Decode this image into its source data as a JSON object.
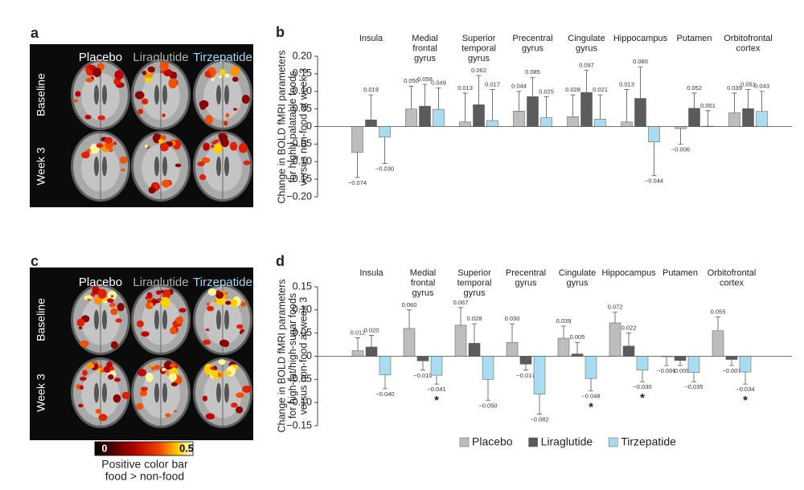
{
  "panel_labels": [
    "a",
    "b",
    "c",
    "d"
  ],
  "brain_panels": [
    {
      "columns": [
        "Placebo",
        "Liraglutide",
        "Tirzepatide"
      ],
      "rows": [
        "Baseline",
        "Week 3"
      ]
    },
    {
      "columns": [
        "Placebo",
        "Liraglutide",
        "Tirzepatide"
      ],
      "rows": [
        "Baseline",
        "Week 3"
      ]
    }
  ],
  "colorbar": {
    "ticks": [
      0,
      0.5
    ],
    "caption": [
      "Positive color bar",
      "food > non-food"
    ]
  },
  "chart_data": [
    {
      "type": "bar",
      "ylabel": [
        "Change in BOLD fMRI parameters",
        "for highly palatable foods",
        "versus non-food at week 3"
      ],
      "categories": [
        [
          "Insula"
        ],
        [
          "Medial",
          "frontal",
          "gyrus"
        ],
        [
          "Superior",
          "temporal",
          "gyrus"
        ],
        [
          "Precentral",
          "gyrus"
        ],
        [
          "Cingulate",
          "gyrus"
        ],
        [
          "Hippocampus"
        ],
        [
          "Putamen"
        ],
        [
          "Orbitofrontal",
          "cortex"
        ]
      ],
      "ylim": [
        -0.2,
        0.2
      ],
      "yticks": [
        {
          "value": 0.2,
          "label": "0.20"
        },
        0.15,
        {
          "value": 0.1,
          "label": "0.10"
        },
        0.05,
        0,
        {
          "value": -0.05,
          "label": "−0.05"
        },
        {
          "value": -0.1,
          "label": "−0.10"
        },
        {
          "value": -0.15,
          "label": "−0.15"
        },
        {
          "value": -0.2,
          "label": "−0.20"
        }
      ],
      "series": [
        {
          "color": "#bdbdbd",
          "values": [
            -0.074,
            0.05,
            0.013,
            0.044,
            0.028,
            0.013,
            -0.006,
            0.039
          ],
          "value_labels": [
            "−0.074",
            "0.050",
            "0.013",
            "0.044",
            "0.028",
            "0.013",
            "−0.006",
            "0.039"
          ],
          "errors": [
            0.071,
            0.065,
            0.082,
            0.056,
            0.062,
            0.092,
            0.044,
            0.056
          ]
        },
        {
          "color": "#5b5b5b",
          "values": [
            0.019,
            0.058,
            0.062,
            0.085,
            0.097,
            0.08,
            0.052,
            0.051
          ],
          "value_labels": [
            "0.019",
            "0.058",
            "0.062",
            "0.085",
            "0.097",
            "0.080",
            "0.052",
            "0.051"
          ],
          "errors": [
            0.071,
            0.062,
            0.083,
            0.055,
            0.063,
            0.09,
            0.043,
            0.054
          ]
        },
        {
          "color": "#a9dcf0",
          "values": [
            -0.03,
            0.049,
            0.017,
            0.025,
            0.021,
            -0.044,
            0.001,
            0.043
          ],
          "value_labels": [
            "−0.030",
            "0.049",
            "0.017",
            "0.025",
            "0.021",
            "−0.044",
            "0.001",
            "0.043"
          ],
          "errors": [
            0.075,
            0.061,
            0.088,
            0.06,
            0.069,
            0.096,
            0.044,
            0.057
          ]
        }
      ]
    },
    {
      "type": "bar",
      "ylabel": [
        "Change in BOLD fMRI parameters",
        "for high-fat/high-sugar foods",
        "versus non-food at week 3"
      ],
      "categories": [
        [
          "Insula"
        ],
        [
          "Medial",
          "frontal",
          "gyrus"
        ],
        [
          "Superior",
          "temporal",
          "gyrus"
        ],
        [
          "Precentral",
          "gyrus"
        ],
        [
          "Cingulate",
          "gyrus"
        ],
        [
          "Hippocampus"
        ],
        [
          "Putamen"
        ],
        [
          "Orbitofrontal",
          "cortex"
        ]
      ],
      "ylim": [
        -0.15,
        0.15
      ],
      "yticks": [
        0.15,
        {
          "value": 0.1,
          "label": "0.10"
        },
        0.05,
        0,
        {
          "value": -0.05,
          "label": "−0.05"
        },
        {
          "value": -0.1,
          "label": "−0.10"
        },
        {
          "value": -0.15,
          "label": "−0.15"
        }
      ],
      "legend": true,
      "series": [
        {
          "name": "Placebo",
          "color": "#bdbdbd",
          "values": [
            0.012,
            0.06,
            0.067,
            0.03,
            0.039,
            0.072,
            -0.001,
            0.055
          ],
          "value_labels": [
            "0.012",
            "0.060",
            "0.067",
            "0.030",
            "0.039",
            "0.072",
            "−0.001",
            "0.055"
          ],
          "errors": [
            0.028,
            0.04,
            0.038,
            0.04,
            0.026,
            0.023,
            0.019,
            0.03
          ]
        },
        {
          "name": "Liraglutide",
          "color": "#5b5b5b",
          "values": [
            0.02,
            -0.01,
            0.028,
            -0.017,
            0.005,
            0.022,
            -0.009,
            -0.007
          ],
          "value_labels": [
            "0.020",
            "−0.010",
            "0.028",
            "−0.017",
            "0.005",
            "0.022",
            "−0.009",
            "−0.007"
          ],
          "errors": [
            0.025,
            0.02,
            0.042,
            0.013,
            0.025,
            0.028,
            0.011,
            0.013
          ]
        },
        {
          "name": "Tirzepatide",
          "color": "#a9dcf0",
          "values": [
            -0.04,
            -0.041,
            -0.05,
            -0.082,
            -0.048,
            -0.03,
            -0.035,
            -0.034
          ],
          "value_labels": [
            "−0.040",
            "−0.041",
            "−0.050",
            "−0.082",
            "−0.048",
            "−0.030",
            "−0.035",
            "−0.034"
          ],
          "errors": [
            0.03,
            0.019,
            0.045,
            0.043,
            0.027,
            0.025,
            0.02,
            0.026
          ],
          "significance": [
            null,
            "*",
            null,
            null,
            "*",
            "*",
            null,
            "*"
          ]
        }
      ]
    }
  ]
}
